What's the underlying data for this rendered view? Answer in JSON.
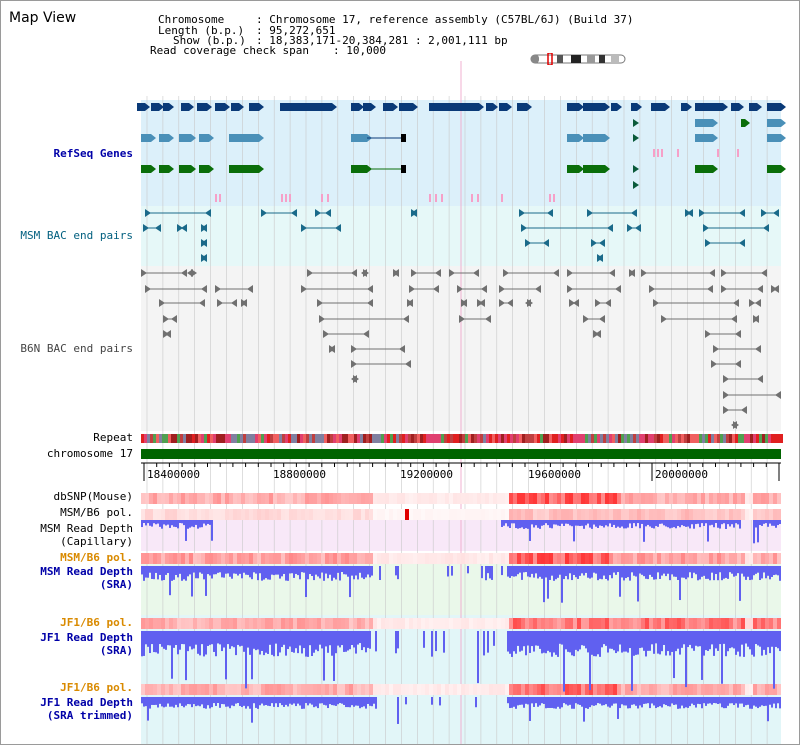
{
  "title": "Map View",
  "header": {
    "chromosome_key": "Chromosome",
    "chromosome_val": ": Chromosome 17, reference assembly (C57BL/6J) (Build 37)",
    "length_key": "Length (b.p.)",
    "length_val": ": 95,272,651",
    "show_key": "Show (b.p.)",
    "show_val": ": 18,383,171-20,384,281 : 2,001,111 bp",
    "coverage_key": "Read coverage check span",
    "coverage_val": ": 10,000"
  },
  "tracks": {
    "refseq": "RefSeq Genes",
    "msm_bac": "MSM BAC end pairs",
    "b6n_bac": "B6N BAC end pairs",
    "repeat": "Repeat",
    "chromosome": "chromosome 17",
    "dbsnp": "dbSNP(Mouse)",
    "msm_b6_pol_1": "MSM/B6 pol.",
    "msm_depth_cap_1": "MSM Read Depth",
    "msm_depth_cap_2": "(Capillary)",
    "msm_b6_pol_2": "MSM/B6 pol.",
    "msm_depth_sra_1": "MSM Read Depth",
    "msm_depth_sra_2": "(SRA)",
    "jf1_b6_pol_1": "JF1/B6 pol.",
    "jf1_depth_sra_1": "JF1 Read Depth",
    "jf1_depth_sra_2": "(SRA)",
    "jf1_b6_pol_2": "JF1/B6 pol.",
    "jf1_depth_trim_1": "JF1 Read Depth",
    "jf1_depth_trim_2": "(SRA trimmed)"
  },
  "axis": {
    "ticks": [
      "18400000",
      "18800000",
      "19200000",
      "19600000",
      "20000000"
    ]
  },
  "colors": {
    "refseq_bg": "#dcf0fa",
    "msm_bac_bg": "#e6f8f8",
    "b6n_bac_bg": "#f4f4f4",
    "chromosome_bar": "#006400",
    "gene_dark": "#0a3a78",
    "gene_teal": "#4a90b8",
    "gene_green": "#0a6e0a",
    "pink_mark": "#f6a0c8",
    "depth_blue": "#6060f0",
    "pol_red": "#f04040",
    "cap_bg": "#f8e8f8",
    "sra_bg": "#eaf8ea",
    "jf1_bg": "#e2f6f8"
  }
}
